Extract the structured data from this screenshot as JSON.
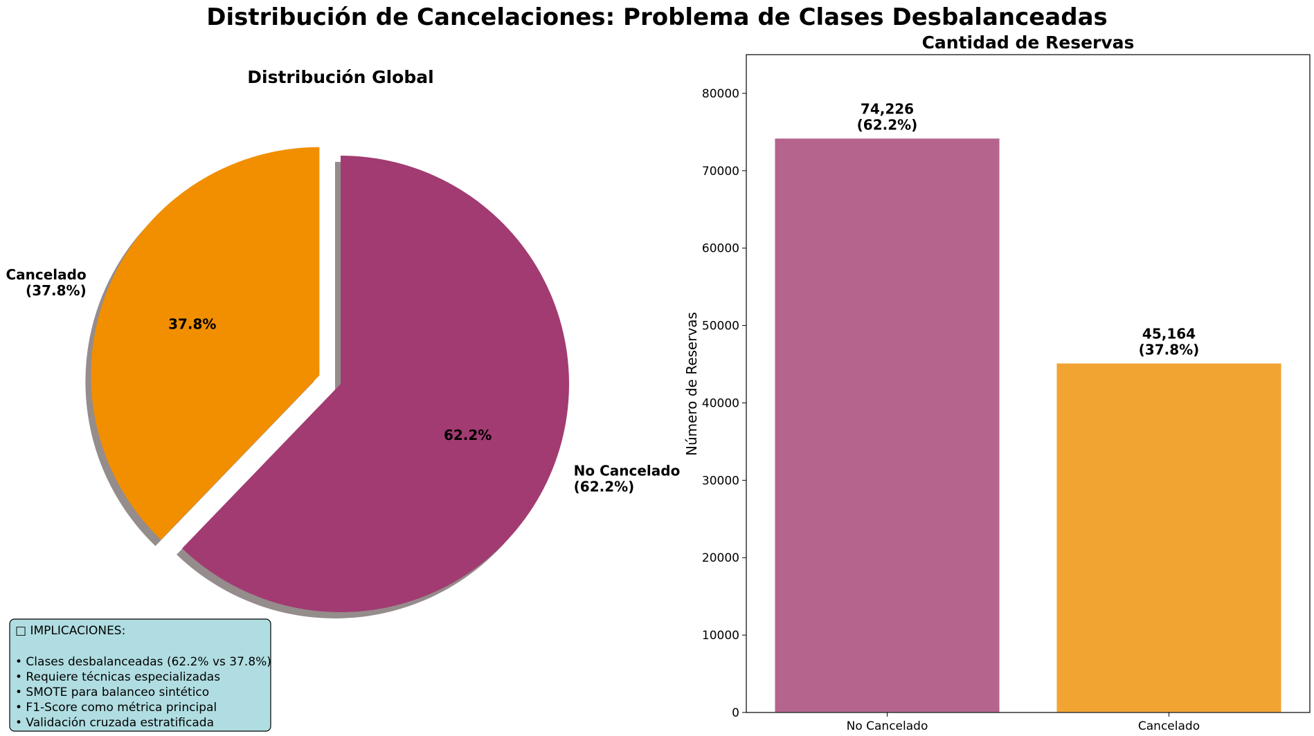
{
  "figure": {
    "title": "Distribución de Cancelaciones: Problema de Clases Desbalanceadas"
  },
  "chart_data": [
    {
      "type": "pie",
      "title": "Distribución Global",
      "labels": [
        "No Cancelado\n(62.2%)",
        "Cancelado\n(37.8%)"
      ],
      "values": [
        62.2,
        37.8
      ],
      "pct_labels": [
        "62.2%",
        "37.8%"
      ],
      "colors": [
        "#A23B72",
        "#F18F01"
      ],
      "explode": [
        0,
        0.1
      ],
      "shadow": true
    },
    {
      "type": "bar",
      "title": "Cantidad de Reservas",
      "categories": [
        "No Cancelado",
        "Cancelado"
      ],
      "values": [
        74226,
        45164
      ],
      "value_labels": [
        "74,226\n(62.2%)",
        "45,164\n(37.8%)"
      ],
      "colors": [
        "#B5648E",
        "#F2A433"
      ],
      "ylabel": "Número de Reservas",
      "ylim": [
        0,
        85000
      ],
      "yticks": [
        0,
        10000,
        20000,
        30000,
        40000,
        50000,
        60000,
        70000,
        80000
      ],
      "grid": false
    }
  ],
  "note": {
    "heading": "□ IMPLICACIONES:",
    "items": [
      "• Clases desbalanceadas (62.2% vs 37.8%)",
      "• Requiere técnicas especializadas",
      "• SMOTE para balanceo sintético",
      "• F1-Score como métrica principal",
      "• Validación cruzada estratificada"
    ],
    "background": "#B0DDE1"
  }
}
